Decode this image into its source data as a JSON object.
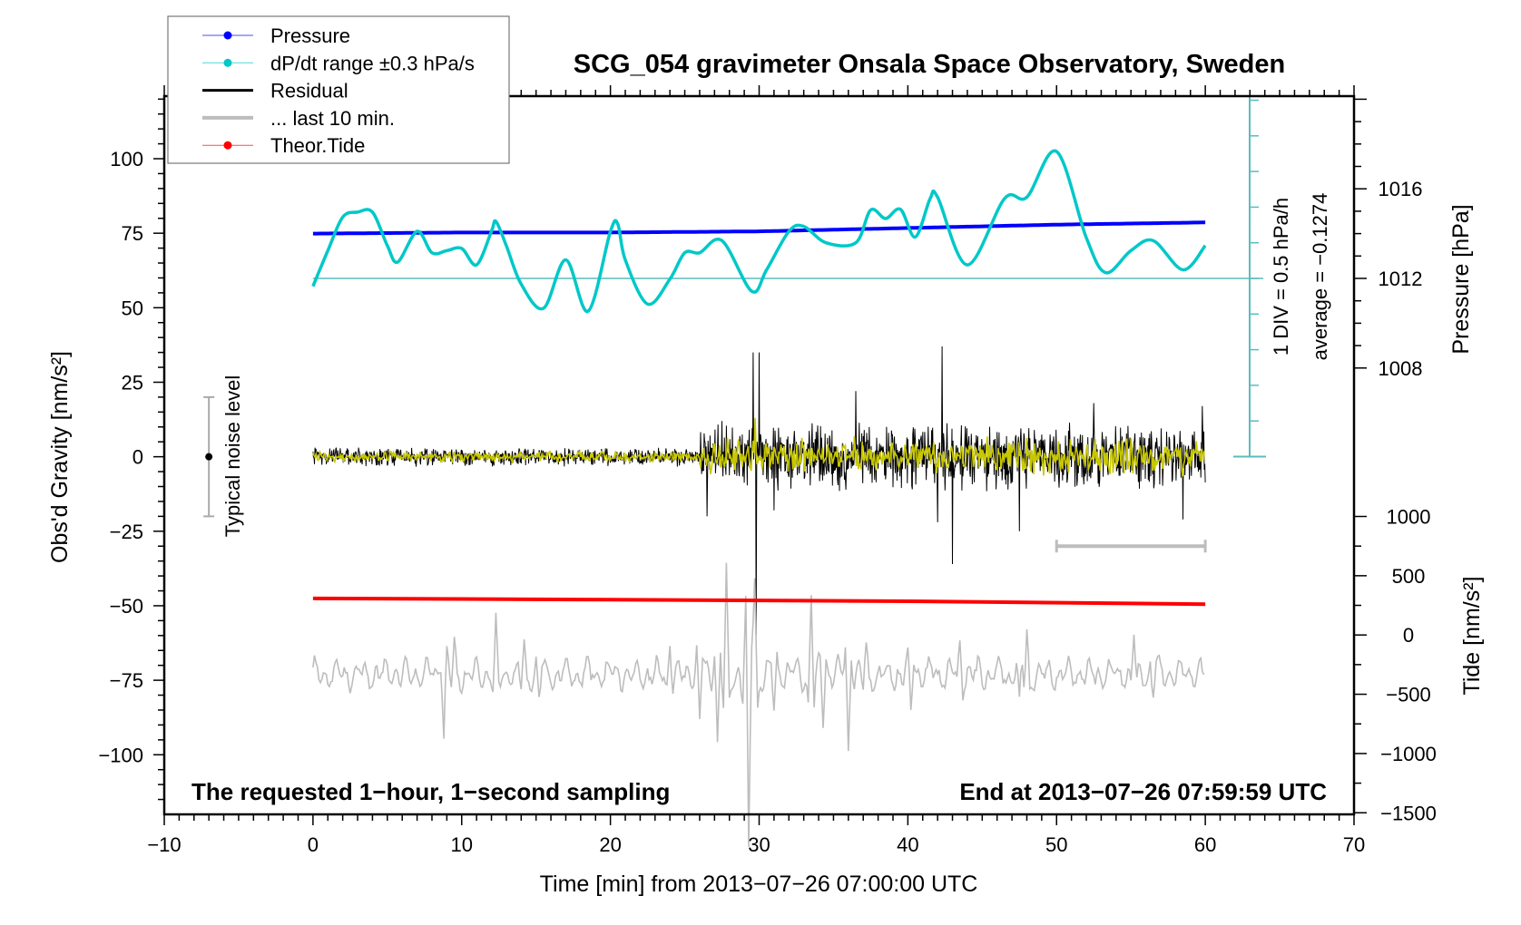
{
  "chart_data": {
    "type": "line",
    "title": "SCG_054 gravimeter Onsala Space Observatory, Sweden",
    "xlabel": "Time [min] from 2013−07−26 07:00:00 UTC",
    "ylabel": "Obs'd Gravity [nm/s²]",
    "ylabel_right_top": "Pressure [hPa]",
    "ylabel_right_bottom": "Tide [nm/s²]",
    "xlim": [
      -10,
      70
    ],
    "ylim": [
      -120,
      121
    ],
    "x_ticks": [
      "−10",
      "0",
      "10",
      "20",
      "30",
      "40",
      "50",
      "60",
      "70"
    ],
    "x_tick_values": [
      -10,
      0,
      10,
      20,
      30,
      40,
      50,
      60,
      70
    ],
    "y_ticks": [
      "100",
      "75",
      "50",
      "25",
      "0",
      "−25",
      "−50",
      "−75",
      "−100"
    ],
    "y_tick_values": [
      100,
      75,
      50,
      25,
      0,
      -25,
      -50,
      -75,
      -100
    ],
    "pressure_ticks": [
      "1016",
      "1012",
      "1008"
    ],
    "pressure_tick_values": [
      1016,
      1012,
      1008
    ],
    "tide_ticks": [
      "1000",
      "500",
      "0",
      "−500",
      "−1000",
      "−1500"
    ],
    "tide_tick_values": [
      1000,
      500,
      0,
      -500,
      -1000,
      -1500
    ],
    "legend": {
      "placement": "top-left",
      "entries": [
        {
          "label": "Pressure",
          "color": "#0000ff",
          "marker": true
        },
        {
          "label": "dP/dt range ±0.3 hPa/s",
          "color": "#00c8c8",
          "marker": true
        },
        {
          "label": "Residual",
          "color": "#000000",
          "marker": false
        },
        {
          "label": "... last 10 min.",
          "color": "#bdbdbd",
          "marker": false
        },
        {
          "label": "Theor.Tide",
          "color": "#ff0000",
          "marker": true
        }
      ]
    },
    "annotations": {
      "noise_label": "Typical noise level",
      "div_label": "1 DIV = 0.5 hPa/h",
      "average_label": "average = −0.1274",
      "bottom_left": "The requested 1−hour, 1−second sampling",
      "bottom_right": "End at 2013−07−26 07:59:59 UTC"
    },
    "noise_level": {
      "x": -7,
      "center": 0,
      "range": [
        -20,
        20
      ]
    },
    "scale_bar_last10": {
      "x": [
        50,
        60
      ],
      "y": -30
    },
    "series": [
      {
        "name": "Pressure",
        "unit": "hPa",
        "color": "#0000ff",
        "x": [
          0,
          10,
          20,
          30,
          40,
          50,
          60
        ],
        "values": [
          1014.0,
          1014.05,
          1014.05,
          1014.1,
          1014.25,
          1014.4,
          1014.5
        ]
      },
      {
        "name": "dP/dt",
        "unit": "hPa/h",
        "color": "#00c8c8",
        "x": [
          0,
          1,
          2,
          3,
          4,
          5,
          5.7,
          7,
          8,
          9,
          10,
          11,
          12,
          12.3,
          13,
          14,
          15.5,
          17,
          18.5,
          20,
          20.5,
          21,
          22.5,
          24,
          25,
          26,
          27.5,
          29.5,
          30.5,
          32,
          33,
          34.5,
          36.5,
          37.5,
          38.5,
          39.5,
          40.5,
          41.5,
          42,
          44,
          46.5,
          48,
          50,
          52,
          53.3,
          55,
          56.5,
          58.5,
          60
        ],
        "values": [
          -0.11,
          0.39,
          0.86,
          0.93,
          0.93,
          0.46,
          0.23,
          0.66,
          0.36,
          0.39,
          0.42,
          0.19,
          0.66,
          0.8,
          0.46,
          -0.08,
          -0.42,
          0.26,
          -0.46,
          0.66,
          0.76,
          0.26,
          -0.36,
          -0.01,
          0.36,
          0.36,
          0.53,
          -0.18,
          0.12,
          0.66,
          0.73,
          0.5,
          0.5,
          0.96,
          0.84,
          0.97,
          0.58,
          1.12,
          1.14,
          0.19,
          1.12,
          1.14,
          1.78,
          0.57,
          0.08,
          0.39,
          0.53,
          0.12,
          0.46
        ]
      },
      {
        "name": "Residual",
        "unit": "nm/s²",
        "color": "#000000",
        "envelope": [
          {
            "from": 0,
            "to": 26,
            "amplitude": 2.5
          },
          {
            "from": 26,
            "to": 60,
            "amplitude": 9
          }
        ],
        "spikes": [
          [
            26.5,
            -20
          ],
          [
            27.5,
            12
          ],
          [
            29.6,
            35
          ],
          [
            29.8,
            -60
          ],
          [
            30.0,
            35
          ],
          [
            31.0,
            -18
          ],
          [
            36.5,
            22
          ],
          [
            42.0,
            -22
          ],
          [
            42.3,
            37
          ],
          [
            43.0,
            -36
          ],
          [
            47.5,
            -25
          ],
          [
            52.5,
            18
          ],
          [
            58.5,
            -21
          ],
          [
            59.8,
            17
          ]
        ]
      },
      {
        "name": "Residual (smoothed)",
        "unit": "nm/s²",
        "color": "#c8c800",
        "envelope": [
          {
            "from": 0,
            "to": 26,
            "amplitude": 1.5
          },
          {
            "from": 26,
            "to": 60,
            "amplitude": 5
          }
        ],
        "spikes": [
          [
            29.7,
            13
          ]
        ]
      },
      {
        "name": "... last 10 min.",
        "unit": "nm/s²",
        "color": "#bdbdbd",
        "baseline": -73,
        "envelope": [
          {
            "from": 0,
            "to": 60,
            "amplitude": 5
          }
        ],
        "spikes": [
          [
            8.8,
            -95
          ],
          [
            9.5,
            -63
          ],
          [
            12.3,
            -58
          ],
          [
            14.2,
            -62
          ],
          [
            15.2,
            -83
          ],
          [
            24,
            -62
          ],
          [
            26,
            -90
          ],
          [
            27.2,
            -97
          ],
          [
            27.8,
            -40
          ],
          [
            28.9,
            -80
          ],
          [
            29.3,
            -135
          ],
          [
            29.7,
            -40
          ],
          [
            31,
            -85
          ],
          [
            33.5,
            -44
          ],
          [
            34.3,
            -88
          ],
          [
            36,
            -100
          ],
          [
            37.2,
            -63
          ],
          [
            40.2,
            -88
          ],
          [
            43.5,
            -63
          ],
          [
            47.5,
            -85
          ],
          [
            48,
            -60
          ],
          [
            55.2,
            -60
          ],
          [
            56.5,
            -80
          ]
        ]
      },
      {
        "name": "Theor.Tide",
        "unit": "nm/s²",
        "color": "#ff0000",
        "x": [
          0,
          20,
          40,
          60
        ],
        "values": [
          309,
          298,
          285,
          260
        ]
      }
    ]
  }
}
